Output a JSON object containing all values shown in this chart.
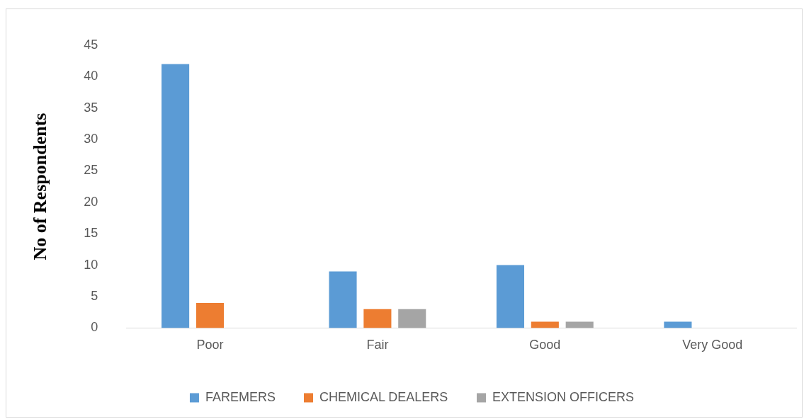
{
  "chart_data": {
    "type": "bar",
    "ylabel": "No of Respondents",
    "categories": [
      "Poor",
      "Fair",
      "Good",
      "Very Good"
    ],
    "series": [
      {
        "name": "FAREMERS",
        "color": "#5b9bd5",
        "values": [
          42,
          9,
          10,
          1
        ]
      },
      {
        "name": "CHEMICAL DEALERS",
        "color": "#ed7d31",
        "values": [
          4,
          3,
          1,
          0
        ]
      },
      {
        "name": "EXTENSION OFFICERS",
        "color": "#a5a5a5",
        "values": [
          0,
          3,
          1,
          0
        ]
      }
    ],
    "ylim": [
      0,
      45
    ],
    "yticks": [
      0,
      5,
      10,
      15,
      20,
      25,
      30,
      35,
      40,
      45
    ],
    "legend": "bottom"
  }
}
